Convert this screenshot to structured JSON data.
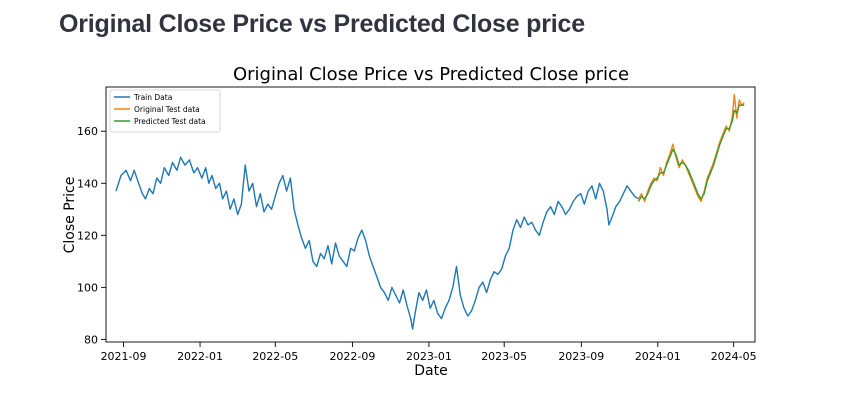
{
  "page": {
    "heading": "Original Close Price vs Predicted Close price"
  },
  "chart_data": {
    "type": "line",
    "title": "Original Close Price vs Predicted Close price",
    "xlabel": "Date",
    "ylabel": "Close Price",
    "xlim": [
      "2021-08-04",
      "2024-06-04"
    ],
    "ylim": [
      79,
      177
    ],
    "x_ticks": [
      "2021-09",
      "2022-01",
      "2022-05",
      "2022-09",
      "2023-01",
      "2023-05",
      "2023-09",
      "2024-01",
      "2024-05"
    ],
    "y_ticks": [
      80,
      100,
      120,
      140,
      160
    ],
    "grid": false,
    "legend": "top-left",
    "series": [
      {
        "name": "Train Data",
        "color": "#1f77b4",
        "points": [
          [
            "2021-08-20",
            137
          ],
          [
            "2021-08-28",
            143
          ],
          [
            "2021-09-05",
            145
          ],
          [
            "2021-09-12",
            141
          ],
          [
            "2021-09-18",
            145
          ],
          [
            "2021-09-25",
            140
          ],
          [
            "2021-10-01",
            136
          ],
          [
            "2021-10-06",
            134
          ],
          [
            "2021-10-12",
            138
          ],
          [
            "2021-10-18",
            136
          ],
          [
            "2021-10-24",
            142
          ],
          [
            "2021-10-30",
            140
          ],
          [
            "2021-11-05",
            146
          ],
          [
            "2021-11-12",
            143
          ],
          [
            "2021-11-18",
            148
          ],
          [
            "2021-11-25",
            145
          ],
          [
            "2021-12-01",
            150
          ],
          [
            "2021-12-08",
            147
          ],
          [
            "2021-12-15",
            149
          ],
          [
            "2021-12-22",
            144
          ],
          [
            "2021-12-28",
            146
          ],
          [
            "2022-01-04",
            142
          ],
          [
            "2022-01-10",
            146
          ],
          [
            "2022-01-15",
            140
          ],
          [
            "2022-01-20",
            143
          ],
          [
            "2022-01-26",
            138
          ],
          [
            "2022-02-01",
            140
          ],
          [
            "2022-02-06",
            134
          ],
          [
            "2022-02-12",
            137
          ],
          [
            "2022-02-18",
            130
          ],
          [
            "2022-02-24",
            134
          ],
          [
            "2022-03-02",
            128
          ],
          [
            "2022-03-08",
            132
          ],
          [
            "2022-03-14",
            147
          ],
          [
            "2022-03-20",
            137
          ],
          [
            "2022-03-26",
            140
          ],
          [
            "2022-04-01",
            131
          ],
          [
            "2022-04-07",
            136
          ],
          [
            "2022-04-13",
            129
          ],
          [
            "2022-04-19",
            132
          ],
          [
            "2022-04-25",
            130
          ],
          [
            "2022-05-01",
            135
          ],
          [
            "2022-05-07",
            140
          ],
          [
            "2022-05-13",
            143
          ],
          [
            "2022-05-19",
            137
          ],
          [
            "2022-05-25",
            142
          ],
          [
            "2022-05-31",
            130
          ],
          [
            "2022-06-06",
            124
          ],
          [
            "2022-06-12",
            119
          ],
          [
            "2022-06-18",
            115
          ],
          [
            "2022-06-24",
            118
          ],
          [
            "2022-06-30",
            110
          ],
          [
            "2022-07-06",
            108
          ],
          [
            "2022-07-12",
            113
          ],
          [
            "2022-07-18",
            111
          ],
          [
            "2022-07-24",
            116
          ],
          [
            "2022-07-30",
            109
          ],
          [
            "2022-08-05",
            117
          ],
          [
            "2022-08-11",
            112
          ],
          [
            "2022-08-17",
            110
          ],
          [
            "2022-08-23",
            108
          ],
          [
            "2022-08-29",
            115
          ],
          [
            "2022-09-04",
            114
          ],
          [
            "2022-09-10",
            119
          ],
          [
            "2022-09-16",
            122
          ],
          [
            "2022-09-22",
            118
          ],
          [
            "2022-09-28",
            112
          ],
          [
            "2022-10-04",
            108
          ],
          [
            "2022-10-10",
            104
          ],
          [
            "2022-10-16",
            100
          ],
          [
            "2022-10-22",
            98
          ],
          [
            "2022-10-28",
            95
          ],
          [
            "2022-11-03",
            100
          ],
          [
            "2022-11-09",
            97
          ],
          [
            "2022-11-15",
            94
          ],
          [
            "2022-11-21",
            99
          ],
          [
            "2022-11-27",
            93
          ],
          [
            "2022-12-03",
            88
          ],
          [
            "2022-12-06",
            84
          ],
          [
            "2022-12-10",
            90
          ],
          [
            "2022-12-16",
            98
          ],
          [
            "2022-12-22",
            95
          ],
          [
            "2022-12-28",
            99
          ],
          [
            "2023-01-03",
            92
          ],
          [
            "2023-01-09",
            95
          ],
          [
            "2023-01-15",
            90
          ],
          [
            "2023-01-21",
            88
          ],
          [
            "2023-01-27",
            92
          ],
          [
            "2023-02-02",
            95
          ],
          [
            "2023-02-08",
            100
          ],
          [
            "2023-02-14",
            108
          ],
          [
            "2023-02-20",
            97
          ],
          [
            "2023-02-26",
            92
          ],
          [
            "2023-03-04",
            89
          ],
          [
            "2023-03-10",
            91
          ],
          [
            "2023-03-16",
            95
          ],
          [
            "2023-03-22",
            100
          ],
          [
            "2023-03-28",
            102
          ],
          [
            "2023-04-03",
            98
          ],
          [
            "2023-04-09",
            103
          ],
          [
            "2023-04-15",
            106
          ],
          [
            "2023-04-21",
            105
          ],
          [
            "2023-04-27",
            107
          ],
          [
            "2023-05-03",
            112
          ],
          [
            "2023-05-09",
            115
          ],
          [
            "2023-05-15",
            122
          ],
          [
            "2023-05-21",
            126
          ],
          [
            "2023-05-27",
            123
          ],
          [
            "2023-06-02",
            127
          ],
          [
            "2023-06-08",
            124
          ],
          [
            "2023-06-14",
            125
          ],
          [
            "2023-06-20",
            122
          ],
          [
            "2023-06-26",
            120
          ],
          [
            "2023-07-02",
            125
          ],
          [
            "2023-07-08",
            129
          ],
          [
            "2023-07-14",
            131
          ],
          [
            "2023-07-20",
            128
          ],
          [
            "2023-07-26",
            133
          ],
          [
            "2023-08-01",
            131
          ],
          [
            "2023-08-07",
            128
          ],
          [
            "2023-08-13",
            130
          ],
          [
            "2023-08-19",
            133
          ],
          [
            "2023-08-25",
            135
          ],
          [
            "2023-08-31",
            136
          ],
          [
            "2023-09-06",
            132
          ],
          [
            "2023-09-12",
            137
          ],
          [
            "2023-09-18",
            139
          ],
          [
            "2023-09-24",
            134
          ],
          [
            "2023-09-30",
            140
          ],
          [
            "2023-10-06",
            137
          ],
          [
            "2023-10-12",
            130
          ],
          [
            "2023-10-15",
            124
          ],
          [
            "2023-10-20",
            127
          ],
          [
            "2023-10-26",
            131
          ],
          [
            "2023-11-01",
            133
          ],
          [
            "2023-11-07",
            136
          ],
          [
            "2023-11-13",
            139
          ],
          [
            "2023-11-19",
            137
          ],
          [
            "2023-11-25",
            135
          ],
          [
            "2023-12-01",
            134
          ]
        ]
      },
      {
        "name": "Original Test data",
        "color": "#ff7f0e",
        "points": [
          [
            "2023-12-01",
            134
          ],
          [
            "2023-12-06",
            136
          ],
          [
            "2023-12-11",
            133
          ],
          [
            "2023-12-16",
            137
          ],
          [
            "2023-12-21",
            140
          ],
          [
            "2023-12-26",
            142
          ],
          [
            "2023-12-31",
            141
          ],
          [
            "2024-01-05",
            146
          ],
          [
            "2024-01-10",
            143
          ],
          [
            "2024-01-15",
            148
          ],
          [
            "2024-01-20",
            151
          ],
          [
            "2024-01-25",
            155
          ],
          [
            "2024-01-30",
            150
          ],
          [
            "2024-02-04",
            146
          ],
          [
            "2024-02-09",
            149
          ],
          [
            "2024-02-14",
            147
          ],
          [
            "2024-02-19",
            144
          ],
          [
            "2024-02-24",
            141
          ],
          [
            "2024-02-29",
            138
          ],
          [
            "2024-03-05",
            135
          ],
          [
            "2024-03-10",
            133
          ],
          [
            "2024-03-15",
            137
          ],
          [
            "2024-03-20",
            142
          ],
          [
            "2024-03-25",
            145
          ],
          [
            "2024-03-30",
            148
          ],
          [
            "2024-04-04",
            152
          ],
          [
            "2024-04-09",
            156
          ],
          [
            "2024-04-14",
            159
          ],
          [
            "2024-04-19",
            162
          ],
          [
            "2024-04-24",
            160
          ],
          [
            "2024-04-29",
            166
          ],
          [
            "2024-05-02",
            174
          ],
          [
            "2024-05-06",
            165
          ],
          [
            "2024-05-10",
            172
          ],
          [
            "2024-05-14",
            170
          ],
          [
            "2024-05-18",
            171
          ]
        ]
      },
      {
        "name": "Predicted Test data",
        "color": "#2ca02c",
        "points": [
          [
            "2023-12-01",
            133
          ],
          [
            "2023-12-06",
            135
          ],
          [
            "2023-12-11",
            134
          ],
          [
            "2023-12-16",
            136
          ],
          [
            "2023-12-21",
            139
          ],
          [
            "2023-12-26",
            141
          ],
          [
            "2023-12-31",
            142
          ],
          [
            "2024-01-05",
            144
          ],
          [
            "2024-01-10",
            144
          ],
          [
            "2024-01-15",
            147
          ],
          [
            "2024-01-20",
            150
          ],
          [
            "2024-01-25",
            153
          ],
          [
            "2024-01-30",
            151
          ],
          [
            "2024-02-04",
            147
          ],
          [
            "2024-02-09",
            148
          ],
          [
            "2024-02-14",
            147
          ],
          [
            "2024-02-19",
            145
          ],
          [
            "2024-02-24",
            142
          ],
          [
            "2024-02-29",
            139
          ],
          [
            "2024-03-05",
            136
          ],
          [
            "2024-03-10",
            134
          ],
          [
            "2024-03-15",
            136
          ],
          [
            "2024-03-20",
            141
          ],
          [
            "2024-03-25",
            144
          ],
          [
            "2024-03-30",
            147
          ],
          [
            "2024-04-04",
            151
          ],
          [
            "2024-04-09",
            155
          ],
          [
            "2024-04-14",
            158
          ],
          [
            "2024-04-19",
            161
          ],
          [
            "2024-04-24",
            161
          ],
          [
            "2024-04-29",
            164
          ],
          [
            "2024-05-02",
            168
          ],
          [
            "2024-05-06",
            167
          ],
          [
            "2024-05-10",
            170
          ],
          [
            "2024-05-14",
            170
          ],
          [
            "2024-05-18",
            170
          ]
        ]
      }
    ]
  }
}
